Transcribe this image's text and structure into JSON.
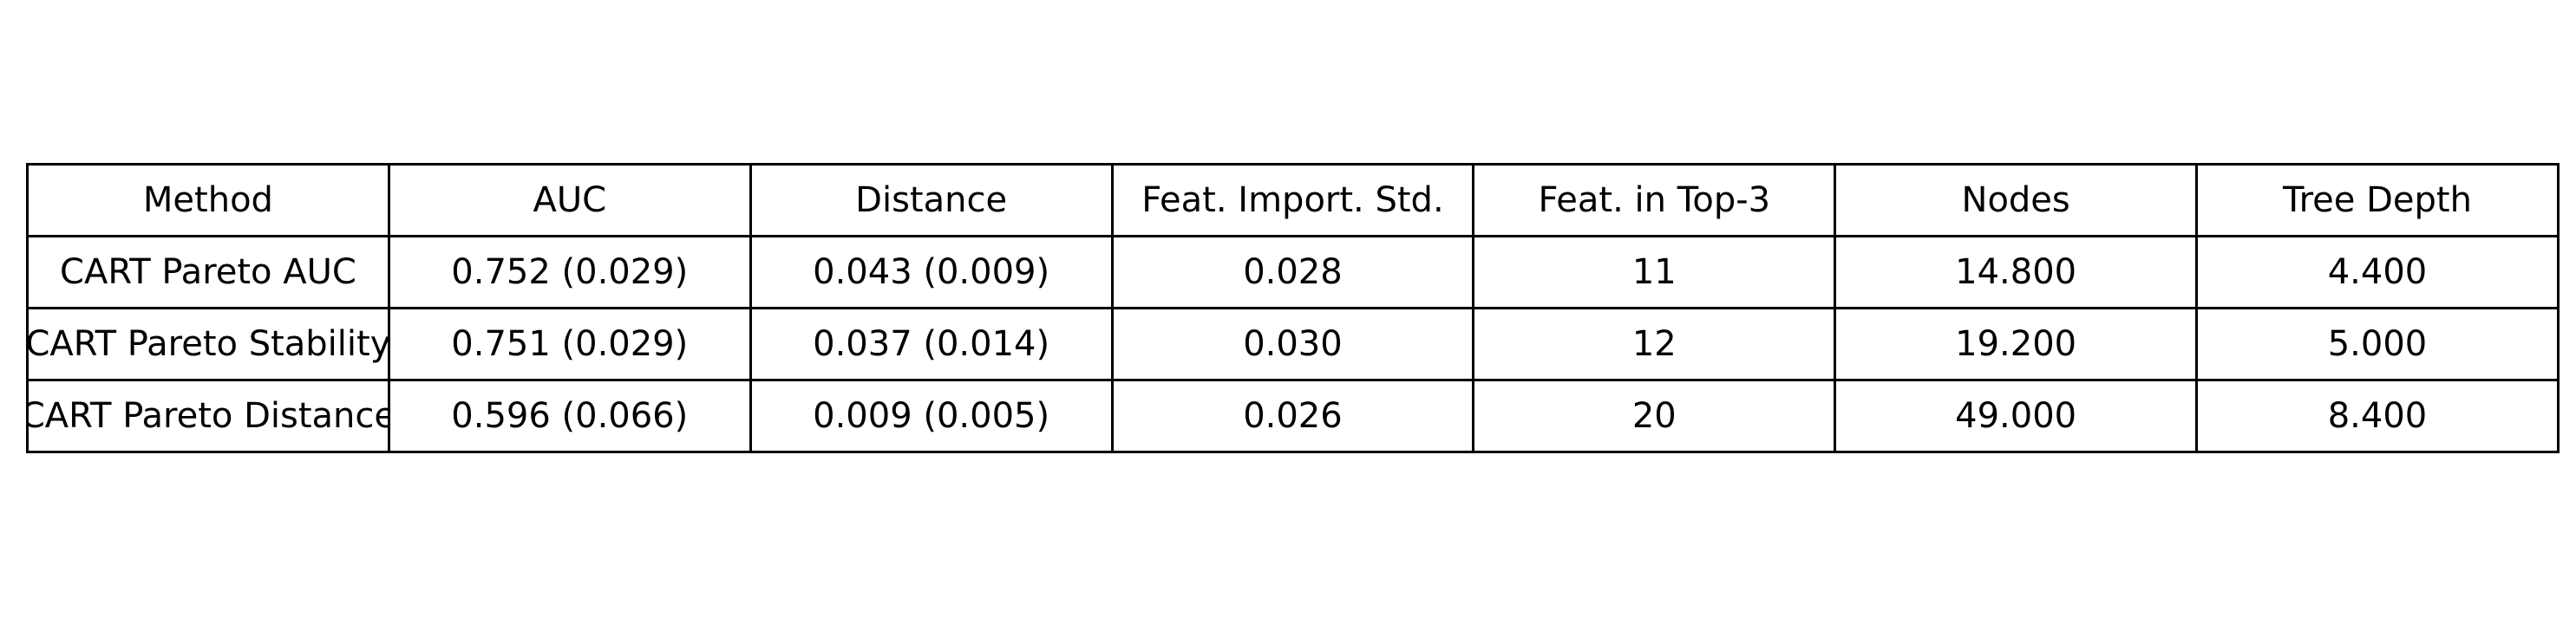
{
  "chart_data": {
    "type": "table",
    "columns": [
      "Method",
      "AUC",
      "Distance",
      "Feat. Import. Std.",
      "Feat. in Top-3",
      "Nodes",
      "Tree Depth"
    ],
    "rows": [
      [
        "CART Pareto AUC",
        "0.752 (0.029)",
        "0.043 (0.009)",
        "0.028",
        "11",
        "14.800",
        "4.400"
      ],
      [
        "CART Pareto Stability",
        "0.751 (0.029)",
        "0.037 (0.014)",
        "0.030",
        "12",
        "19.200",
        "5.000"
      ],
      [
        "CART Pareto Distance",
        "0.596 (0.066)",
        "0.009 (0.005)",
        "0.026",
        "20",
        "49.000",
        "8.400"
      ]
    ]
  }
}
